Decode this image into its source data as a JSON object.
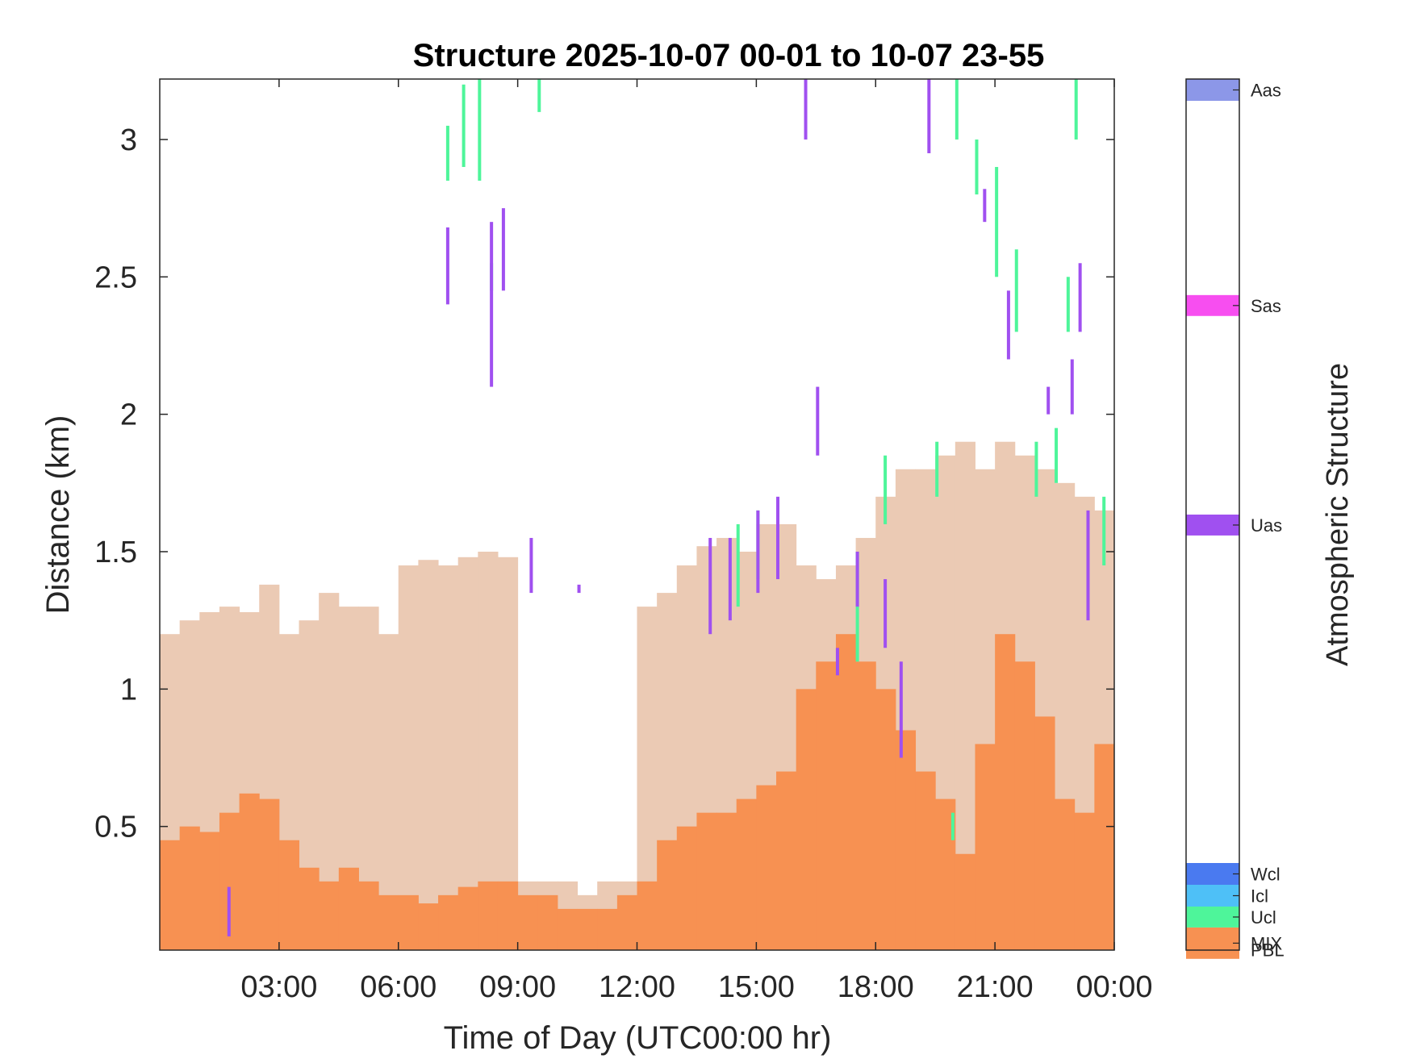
{
  "chart_data": {
    "type": "heatmap",
    "title": "Structure 2025-10-07 00-01 to 10-07 23-55",
    "xlabel": "Time of Day (UTC00:00 hr)",
    "ylabel": "Distance (km)",
    "xlim": [
      0,
      24
    ],
    "ylim": [
      0.05,
      3.22
    ],
    "x_ticks": [
      3,
      6,
      9,
      12,
      15,
      18,
      21,
      24
    ],
    "x_tick_labels": [
      "03:00",
      "06:00",
      "09:00",
      "12:00",
      "15:00",
      "18:00",
      "21:00",
      "00:00"
    ],
    "y_ticks": [
      0.5,
      1,
      1.5,
      2,
      2.5,
      3
    ],
    "y_tick_labels": [
      "0.5",
      "1",
      "1.5",
      "2",
      "2.5",
      "3"
    ],
    "colorbar": {
      "title": "Atmospheric Structure",
      "classes": [
        {
          "label": "PBL",
          "color": "#ebcab4"
        },
        {
          "label": "MIX",
          "color": "#f79152"
        },
        {
          "label": "Ucl",
          "color": "#4ef59a"
        },
        {
          "label": "Icl",
          "color": "#4ec0f7"
        },
        {
          "label": "Wcl",
          "color": "#4a7af0"
        },
        {
          "label": "Uas",
          "color": "#a050f0"
        },
        {
          "label": "Sas",
          "color": "#f74ef0"
        },
        {
          "label": "Aas",
          "color": "#8c97e8"
        }
      ]
    },
    "pbl_top_km": [
      [
        0.0,
        1.2
      ],
      [
        0.5,
        1.25
      ],
      [
        1.0,
        1.28
      ],
      [
        1.5,
        1.3
      ],
      [
        2.0,
        1.28
      ],
      [
        2.5,
        1.38
      ],
      [
        3.0,
        1.2
      ],
      [
        3.5,
        1.25
      ],
      [
        4.0,
        1.35
      ],
      [
        4.5,
        1.3
      ],
      [
        5.0,
        1.3
      ],
      [
        5.5,
        1.2
      ],
      [
        6.0,
        1.45
      ],
      [
        6.5,
        1.47
      ],
      [
        7.0,
        1.45
      ],
      [
        7.5,
        1.48
      ],
      [
        8.0,
        1.5
      ],
      [
        8.5,
        1.48
      ],
      [
        9.0,
        0.3
      ],
      [
        9.5,
        0.3
      ],
      [
        10.0,
        0.3
      ],
      [
        10.5,
        0.25
      ],
      [
        11.0,
        0.3
      ],
      [
        11.5,
        0.3
      ],
      [
        12.0,
        1.3
      ],
      [
        12.5,
        1.35
      ],
      [
        13.0,
        1.45
      ],
      [
        13.5,
        1.52
      ],
      [
        14.0,
        1.55
      ],
      [
        14.5,
        1.5
      ],
      [
        15.0,
        1.6
      ],
      [
        15.5,
        1.6
      ],
      [
        16.0,
        1.45
      ],
      [
        16.5,
        1.4
      ],
      [
        17.0,
        1.45
      ],
      [
        17.5,
        1.55
      ],
      [
        18.0,
        1.7
      ],
      [
        18.5,
        1.8
      ],
      [
        19.0,
        1.8
      ],
      [
        19.5,
        1.85
      ],
      [
        20.0,
        1.9
      ],
      [
        20.5,
        1.8
      ],
      [
        21.0,
        1.9
      ],
      [
        21.5,
        1.85
      ],
      [
        22.0,
        1.8
      ],
      [
        22.5,
        1.75
      ],
      [
        23.0,
        1.7
      ],
      [
        23.5,
        1.65
      ]
    ],
    "mix_top_km": [
      [
        0.0,
        0.45
      ],
      [
        0.5,
        0.5
      ],
      [
        1.0,
        0.48
      ],
      [
        1.5,
        0.55
      ],
      [
        2.0,
        0.62
      ],
      [
        2.5,
        0.6
      ],
      [
        3.0,
        0.45
      ],
      [
        3.5,
        0.35
      ],
      [
        4.0,
        0.3
      ],
      [
        4.5,
        0.35
      ],
      [
        5.0,
        0.3
      ],
      [
        5.5,
        0.25
      ],
      [
        6.0,
        0.25
      ],
      [
        6.5,
        0.22
      ],
      [
        7.0,
        0.25
      ],
      [
        7.5,
        0.28
      ],
      [
        8.0,
        0.3
      ],
      [
        8.5,
        0.3
      ],
      [
        9.0,
        0.25
      ],
      [
        9.5,
        0.25
      ],
      [
        10.0,
        0.2
      ],
      [
        10.5,
        0.2
      ],
      [
        11.0,
        0.2
      ],
      [
        11.5,
        0.25
      ],
      [
        12.0,
        0.3
      ],
      [
        12.5,
        0.45
      ],
      [
        13.0,
        0.5
      ],
      [
        13.5,
        0.55
      ],
      [
        14.0,
        0.55
      ],
      [
        14.5,
        0.6
      ],
      [
        15.0,
        0.65
      ],
      [
        15.5,
        0.7
      ],
      [
        16.0,
        1.0
      ],
      [
        16.5,
        1.1
      ],
      [
        17.0,
        1.2
      ],
      [
        17.5,
        1.1
      ],
      [
        18.0,
        1.0
      ],
      [
        18.5,
        0.85
      ],
      [
        19.0,
        0.7
      ],
      [
        19.5,
        0.6
      ],
      [
        20.0,
        0.4
      ],
      [
        20.5,
        0.8
      ],
      [
        21.0,
        1.2
      ],
      [
        21.5,
        1.1
      ],
      [
        22.0,
        0.9
      ],
      [
        22.5,
        0.6
      ],
      [
        23.0,
        0.55
      ],
      [
        23.5,
        0.8
      ]
    ],
    "ucl_segments_km": [
      [
        7.2,
        2.85,
        3.05
      ],
      [
        7.6,
        2.9,
        3.2
      ],
      [
        8.0,
        2.85,
        3.22
      ],
      [
        8.3,
        2.45,
        2.55
      ],
      [
        9.5,
        3.1,
        3.22
      ],
      [
        14.5,
        1.3,
        1.6
      ],
      [
        15.0,
        1.4,
        1.65
      ],
      [
        17.5,
        1.1,
        1.5
      ],
      [
        18.2,
        1.6,
        1.85
      ],
      [
        19.5,
        1.7,
        1.9
      ],
      [
        19.9,
        0.45,
        0.55
      ],
      [
        20.0,
        3.0,
        3.22
      ],
      [
        20.5,
        2.8,
        3.0
      ],
      [
        21.0,
        2.5,
        2.9
      ],
      [
        21.5,
        2.3,
        2.6
      ],
      [
        22.0,
        1.7,
        1.9
      ],
      [
        22.5,
        1.75,
        1.95
      ],
      [
        22.8,
        2.3,
        2.5
      ],
      [
        23.0,
        3.0,
        3.22
      ],
      [
        23.7,
        1.45,
        1.7
      ]
    ],
    "uas_segments_km": [
      [
        1.7,
        0.1,
        0.28
      ],
      [
        7.2,
        2.4,
        2.68
      ],
      [
        8.3,
        2.1,
        2.7
      ],
      [
        8.6,
        2.45,
        2.75
      ],
      [
        9.3,
        1.35,
        1.55
      ],
      [
        10.5,
        1.35,
        1.38
      ],
      [
        13.8,
        1.2,
        1.55
      ],
      [
        14.3,
        1.25,
        1.55
      ],
      [
        15.0,
        1.35,
        1.65
      ],
      [
        15.5,
        1.4,
        1.7
      ],
      [
        16.2,
        3.0,
        3.22
      ],
      [
        16.5,
        1.85,
        2.1
      ],
      [
        17.0,
        1.05,
        1.15
      ],
      [
        17.5,
        1.3,
        1.5
      ],
      [
        18.2,
        1.15,
        1.4
      ],
      [
        18.6,
        0.75,
        1.1
      ],
      [
        19.3,
        2.95,
        3.22
      ],
      [
        20.7,
        2.7,
        2.82
      ],
      [
        21.3,
        2.2,
        2.45
      ],
      [
        22.3,
        2.0,
        2.1
      ],
      [
        22.9,
        2.0,
        2.2
      ],
      [
        23.1,
        2.3,
        2.55
      ],
      [
        23.3,
        1.25,
        1.65
      ]
    ]
  }
}
